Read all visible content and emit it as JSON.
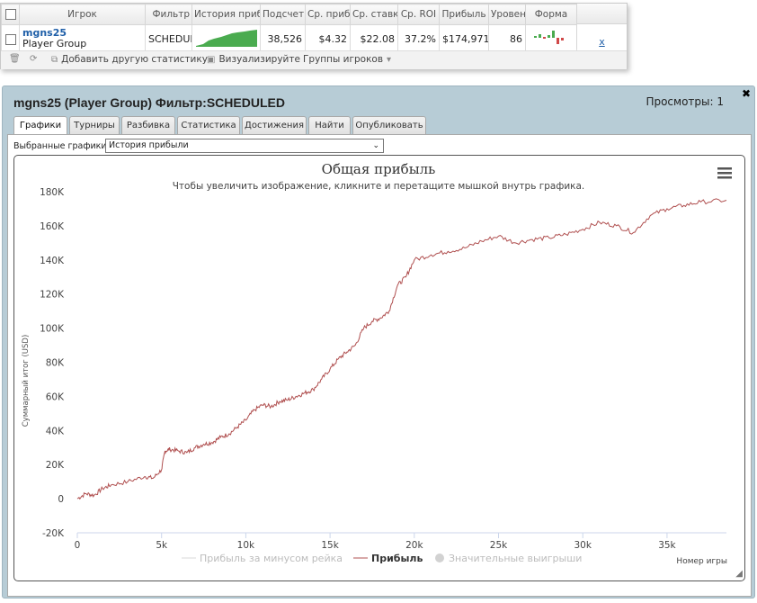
{
  "stats_table": {
    "headers": [
      "Игрок",
      "Фильтр",
      "История прибыли",
      "Подсчет",
      "Ср. прибыль",
      "Ср. ставка",
      "Ср. ROI",
      "Прибыль",
      "Уровень",
      "Форма"
    ],
    "row": {
      "player": "mgns25",
      "group": "Player Group",
      "filter": "SCHEDULED",
      "count": "38,526",
      "avg_profit": "$4.32",
      "avg_stake": "$22.08",
      "avg_roi": "37.2%",
      "profit": "$174,971",
      "level": "86",
      "remove": "x"
    }
  },
  "toolbar": {
    "add_stats": "Добавить другую статистику",
    "visualize": "Визуализируйте",
    "player_groups": "Группы игроков"
  },
  "panel": {
    "title": "mgns25 (Player Group) Фильтр:SCHEDULED",
    "views": "Просмотры: 1",
    "tabs": [
      "Графики",
      "Турниры",
      "Разбивка",
      "Статистика",
      "Достижения",
      "Найти",
      "Опубликовать"
    ],
    "selected_label": "Выбранные графики:",
    "selected_value": "История прибыли"
  },
  "chart_data": {
    "type": "line",
    "title": "Общая прибыль",
    "subtitle": "Чтобы увеличить изображение, кликните и перетащите мышкой внутрь графика.",
    "xlabel": "Номер игры",
    "ylabel": "Суммарный итог (USD)",
    "xlim": [
      0,
      38526
    ],
    "ylim": [
      -20000,
      180000
    ],
    "x_ticks": [
      0,
      5000,
      10000,
      15000,
      20000,
      25000,
      30000,
      35000
    ],
    "x_tick_labels": [
      "0",
      "5k",
      "10k",
      "15k",
      "20k",
      "25k",
      "30k",
      "35k"
    ],
    "y_ticks": [
      -20000,
      0,
      20000,
      40000,
      60000,
      80000,
      100000,
      120000,
      140000,
      160000,
      180000
    ],
    "y_tick_labels": [
      "-20K",
      "0",
      "20K",
      "40K",
      "60K",
      "80K",
      "100K",
      "120K",
      "140K",
      "160K",
      "180K"
    ],
    "grid": false,
    "legend_position": "bottom",
    "legend": [
      "Прибыль за минусом рейка",
      "Прибыль",
      "Значительные выигрыши"
    ],
    "series_color": "#b05050",
    "series": [
      {
        "name": "Прибыль",
        "x": [
          0,
          500,
          1000,
          1500,
          2000,
          3000,
          4000,
          4500,
          5000,
          5200,
          5500,
          6000,
          6500,
          7000,
          7500,
          8000,
          8500,
          9000,
          9500,
          10000,
          10500,
          11000,
          11500,
          12000,
          12500,
          13000,
          13500,
          14000,
          14500,
          15000,
          15500,
          16000,
          16500,
          17000,
          17500,
          18000,
          18500,
          19000,
          19500,
          20000,
          21000,
          22000,
          23000,
          24000,
          25000,
          26000,
          27000,
          28000,
          29000,
          30000,
          31000,
          32000,
          33000,
          34000,
          35000,
          36000,
          37000,
          38526
        ],
        "y": [
          0,
          3000,
          2000,
          6000,
          8000,
          10000,
          13000,
          12000,
          17000,
          28000,
          29000,
          28000,
          27000,
          30000,
          32000,
          33000,
          36000,
          38000,
          42000,
          46000,
          52000,
          55000,
          54000,
          57000,
          58000,
          60000,
          62000,
          64000,
          70000,
          76000,
          82000,
          86000,
          90000,
          100000,
          104000,
          106000,
          110000,
          125000,
          130000,
          140000,
          143000,
          145000,
          147000,
          151000,
          154000,
          150000,
          152000,
          153000,
          155000,
          158000,
          162000,
          160000,
          156000,
          166000,
          170000,
          172000,
          174000,
          174971
        ]
      }
    ]
  }
}
